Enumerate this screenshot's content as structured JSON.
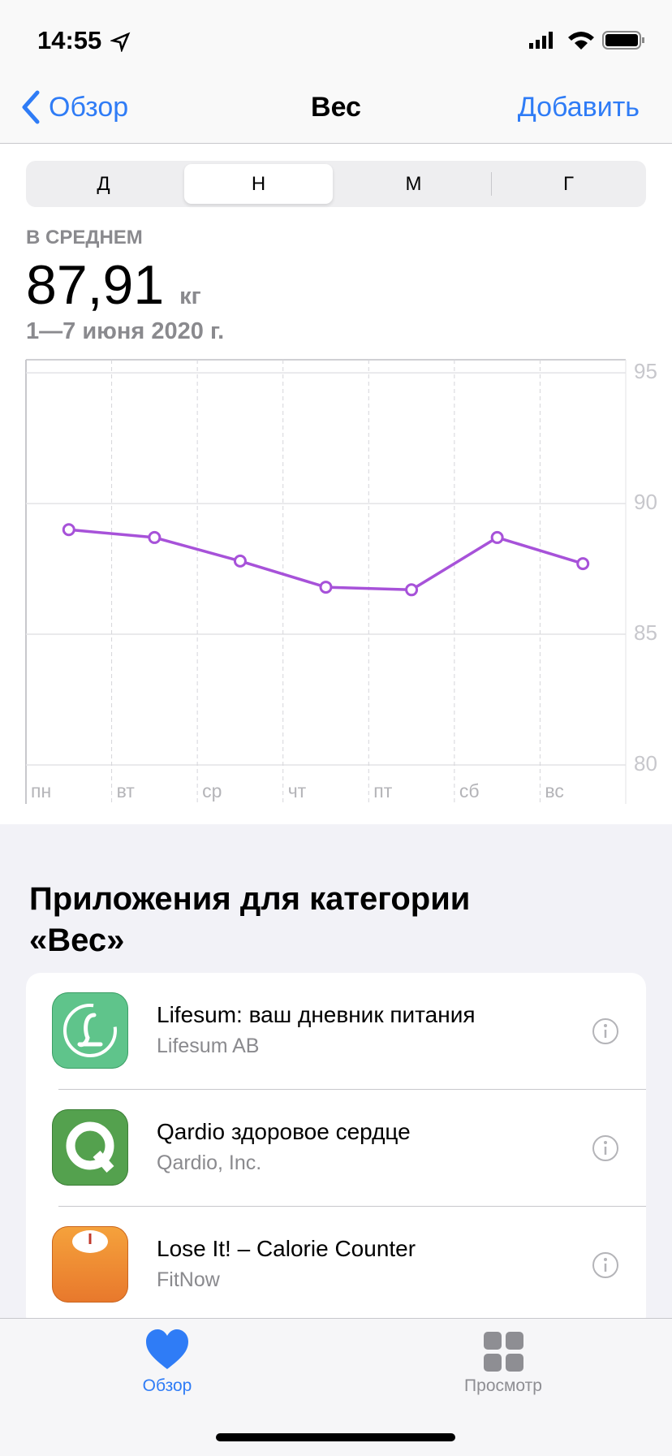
{
  "status_bar": {
    "time": "14:55"
  },
  "nav": {
    "back": "Обзор",
    "title": "Вес",
    "action": "Добавить"
  },
  "segments": {
    "items": [
      "Д",
      "Н",
      "М",
      "Г"
    ],
    "selected": 1
  },
  "summary": {
    "label": "В СРЕДНЕМ",
    "value": "87,91",
    "unit": "кг",
    "range": "1—7 июня 2020 г."
  },
  "chart_data": {
    "type": "line",
    "categories": [
      "пн",
      "вт",
      "ср",
      "чт",
      "пт",
      "сб",
      "вс"
    ],
    "values": [
      89.0,
      88.7,
      87.8,
      86.8,
      86.7,
      88.7,
      87.7
    ],
    "color": "#a752d9",
    "ylim": [
      80,
      95.5
    ],
    "yticks": [
      80,
      85,
      90,
      95
    ],
    "grid": true
  },
  "apps": {
    "title": "Приложения для категории «Вес»",
    "items": [
      {
        "name": "Lifesum: ваш дневник питания",
        "developer": "Lifesum AB"
      },
      {
        "name": "Qardio здоровое сердце",
        "developer": "Qardio, Inc."
      },
      {
        "name": "Lose It! – Calorie Counter",
        "developer": "FitNow"
      }
    ]
  },
  "tab_bar": {
    "items": [
      "Обзор",
      "Просмотр"
    ],
    "selected": 0
  }
}
